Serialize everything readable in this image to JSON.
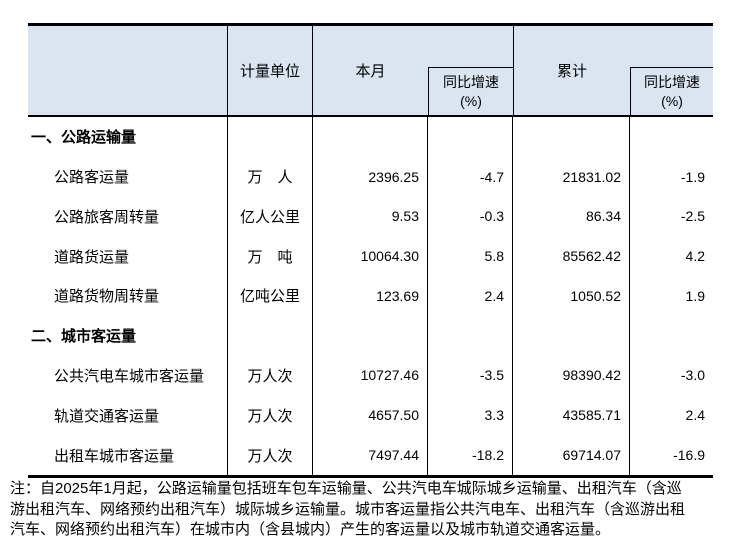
{
  "table": {
    "colors": {
      "header_bg": "#dbe5f1",
      "border": "#000000"
    },
    "header": {
      "unit": "计量单位",
      "month": "本月",
      "yoy": "同比增速",
      "yoy_pct": "(%)",
      "cumulative": "累计"
    },
    "rows": [
      {
        "type": "section",
        "label": "一、公路运输量",
        "unit": "",
        "month": "",
        "yoy": "",
        "cum": "",
        "cyoy": ""
      },
      {
        "type": "item",
        "label": "公路客运量",
        "unit": "万　人",
        "month": "2396.25",
        "yoy": "-4.7",
        "cum": "21831.02",
        "cyoy": "-1.9"
      },
      {
        "type": "item",
        "label": "公路旅客周转量",
        "unit": "亿人公里",
        "month": "9.53",
        "yoy": "-0.3",
        "cum": "86.34",
        "cyoy": "-2.5"
      },
      {
        "type": "item",
        "label": "道路货运量",
        "unit": "万　吨",
        "month": "10064.30",
        "yoy": "5.8",
        "cum": "85562.42",
        "cyoy": "4.2"
      },
      {
        "type": "item",
        "label": "道路货物周转量",
        "unit": "亿吨公里",
        "month": "123.69",
        "yoy": "2.4",
        "cum": "1050.52",
        "cyoy": "1.9"
      },
      {
        "type": "section",
        "label": "二、城市客运量",
        "unit": "",
        "month": "",
        "yoy": "",
        "cum": "",
        "cyoy": ""
      },
      {
        "type": "item",
        "label": "公共汽电车城市客运量",
        "unit": "万人次",
        "month": "10727.46",
        "yoy": "-3.5",
        "cum": "98390.42",
        "cyoy": "-3.0"
      },
      {
        "type": "item",
        "label": "轨道交通客运量",
        "unit": "万人次",
        "month": "4657.50",
        "yoy": "3.3",
        "cum": "43585.71",
        "cyoy": "2.4"
      },
      {
        "type": "item",
        "label": "出租车城市客运量",
        "unit": "万人次",
        "month": "7497.44",
        "yoy": "-18.2",
        "cum": "69714.07",
        "cyoy": "-16.9"
      }
    ]
  },
  "note": {
    "lines": [
      "注：自2025年1月起，公路运输量包括班车包车运输量、公共汽电车城际城乡运输量、出租汽车（含巡",
      "游出租汽车、网络预约出租汽车）城际城乡运输量。城市客运量指公共汽电车、出租汽车（含巡游出租",
      "汽车、网络预约出租汽车）在城市内（含县城内）产生的客运量以及城市轨道交通客运量。"
    ]
  }
}
